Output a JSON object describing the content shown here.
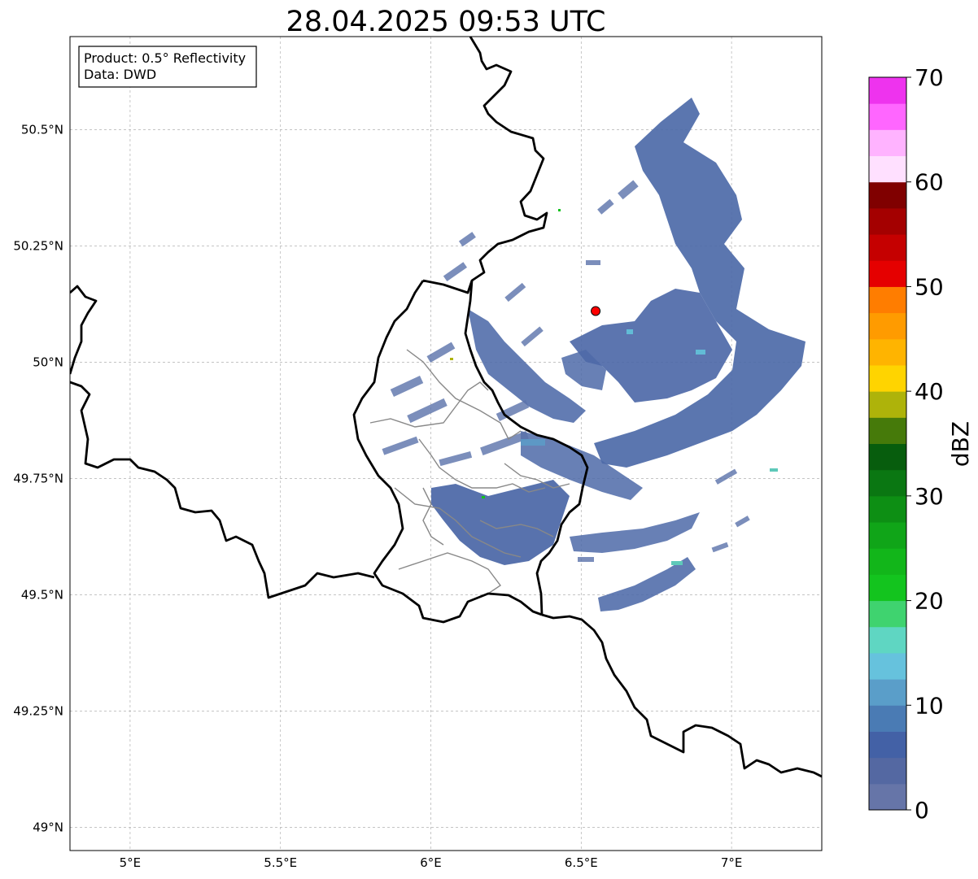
{
  "title": "28.04.2025 09:53 UTC",
  "info_box": {
    "line1": "Product: 0.5° Reflectivity",
    "line2": "Data: DWD"
  },
  "map": {
    "lon_range": [
      4.8,
      7.3
    ],
    "lat_range": [
      48.95,
      50.7
    ],
    "lon_ticks": [
      {
        "value": 5.0,
        "label": "5°E"
      },
      {
        "value": 5.5,
        "label": "5.5°E"
      },
      {
        "value": 6.0,
        "label": "6°E"
      },
      {
        "value": 6.5,
        "label": "6.5°E"
      },
      {
        "value": 7.0,
        "label": "7°E"
      }
    ],
    "lat_ticks": [
      {
        "value": 49.0,
        "label": "49°N"
      },
      {
        "value": 49.25,
        "label": "49.25°N"
      },
      {
        "value": 49.5,
        "label": "49.5°N"
      },
      {
        "value": 49.75,
        "label": "49.75°N"
      },
      {
        "value": 50.0,
        "label": "50°N"
      },
      {
        "value": 50.25,
        "label": "50.25°N"
      },
      {
        "value": 50.5,
        "label": "50.5°N"
      }
    ],
    "grid": true,
    "radar_site": {
      "lon": 6.548,
      "lat": 50.11,
      "color": "#ff0000"
    },
    "echo_base_color": "#4d6aa8",
    "echo_highlight_colors": [
      "#3f5fa5",
      "#5a7fb5",
      "#62bcd6",
      "#5ec9b9",
      "#12c21e"
    ]
  },
  "colorbar": {
    "label": "dBZ",
    "min": 0,
    "max": 70,
    "step": 2.5,
    "ticks": [
      {
        "value": 0,
        "label": "0"
      },
      {
        "value": 10,
        "label": "10"
      },
      {
        "value": 20,
        "label": "20"
      },
      {
        "value": 30,
        "label": "30"
      },
      {
        "value": 40,
        "label": "40"
      },
      {
        "value": 50,
        "label": "50"
      },
      {
        "value": 60,
        "label": "60"
      },
      {
        "value": 70,
        "label": "70"
      }
    ],
    "colors": [
      "#6675a8",
      "#5468a2",
      "#4361a6",
      "#4a7bb4",
      "#5a9ec9",
      "#66c2dd",
      "#5fd6c2",
      "#3fd36f",
      "#13c41e",
      "#12b61a",
      "#10a518",
      "#0d8f14",
      "#0a7712",
      "#075d0d",
      "#467a0a",
      "#aeb30a",
      "#ffd400",
      "#ffb400",
      "#ff9b00",
      "#ff7d00",
      "#e50000",
      "#c50000",
      "#a40000",
      "#800000",
      "#ffe0ff",
      "#ffb3ff",
      "#ff66ff",
      "#ee33ee"
    ]
  }
}
